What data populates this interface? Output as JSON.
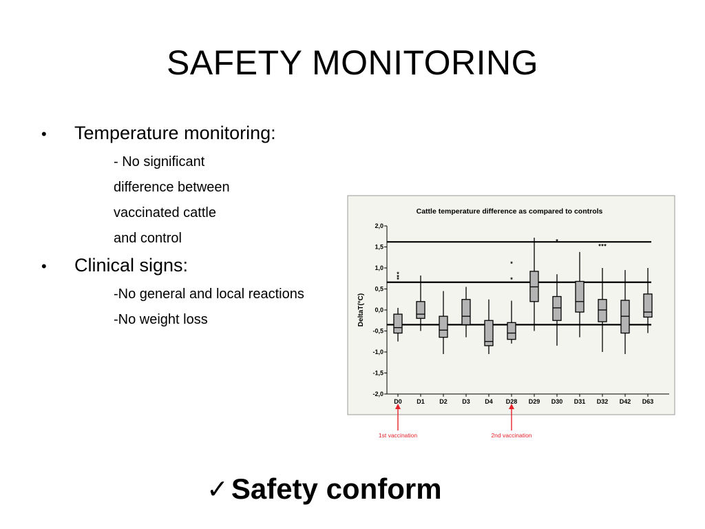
{
  "slide": {
    "title": "SAFETY MONITORING",
    "bullets": [
      {
        "label": "Temperature monitoring:",
        "subs": [
          "- No significant",
          "difference between",
          "vaccinated cattle",
          "and control"
        ]
      },
      {
        "label": "Clinical signs:",
        "subs": [
          "-No general and local reactions",
          "-No weight loss"
        ]
      }
    ],
    "bullet_glyph": "•",
    "check_glyph": "✓",
    "verdict": "Safety conform"
  },
  "chart_data": {
    "type": "box",
    "title": "Cattle temperature difference as compared to controls",
    "ylabel": "DeltaT(°C)",
    "ylim": [
      -2.0,
      2.0
    ],
    "yticks": [
      "2,0",
      "1,5",
      "1,0",
      "0,5",
      "0,0",
      "-0,5",
      "-1,0",
      "-1,5",
      "-2,0"
    ],
    "ytick_values": [
      2.0,
      1.5,
      1.0,
      0.5,
      0.0,
      -0.5,
      -1.0,
      -1.5,
      -2.0
    ],
    "reference_lines": [
      1.62,
      0.66,
      -0.35
    ],
    "categories": [
      "D0",
      "D1",
      "D2",
      "D3",
      "D4",
      "D28",
      "D29",
      "D30",
      "D31",
      "D32",
      "D42",
      "D63"
    ],
    "boxes": [
      {
        "min": -0.75,
        "q1": -0.55,
        "median": -0.42,
        "q3": -0.1,
        "max": 0.05
      },
      {
        "min": -0.5,
        "q1": -0.2,
        "median": -0.1,
        "q3": 0.2,
        "max": 0.82
      },
      {
        "min": -1.05,
        "q1": -0.65,
        "median": -0.48,
        "q3": -0.15,
        "max": 0.45
      },
      {
        "min": -0.65,
        "q1": -0.35,
        "median": -0.15,
        "q3": 0.25,
        "max": 0.55
      },
      {
        "min": -1.05,
        "q1": -0.85,
        "median": -0.75,
        "q3": -0.25,
        "max": 0.25
      },
      {
        "min": -0.8,
        "q1": -0.7,
        "median": -0.55,
        "q3": -0.3,
        "max": 0.22
      },
      {
        "min": -0.5,
        "q1": 0.2,
        "median": 0.55,
        "q3": 0.92,
        "max": 1.72
      },
      {
        "min": -0.85,
        "q1": -0.25,
        "median": 0.05,
        "q3": 0.32,
        "max": 0.85
      },
      {
        "min": -0.65,
        "q1": -0.05,
        "median": 0.2,
        "q3": 0.68,
        "max": 1.38
      },
      {
        "min": -1.0,
        "q1": -0.28,
        "median": 0.0,
        "q3": 0.25,
        "max": 1.0
      },
      {
        "min": -1.05,
        "q1": -0.55,
        "median": -0.15,
        "q3": 0.23,
        "max": 0.95
      },
      {
        "min": -0.55,
        "q1": -0.17,
        "median": -0.05,
        "q3": 0.38,
        "max": 1.0
      }
    ],
    "outliers": [
      {
        "category": "D0",
        "values": [
          0.85,
          0.78,
          0.72
        ]
      },
      {
        "category": "D28",
        "values": [
          1.1,
          0.72
        ]
      },
      {
        "category": "D30",
        "values": [
          1.63
        ]
      },
      {
        "category": "D32",
        "values": [
          1.52,
          1.52,
          1.52
        ]
      }
    ],
    "annotations": [
      {
        "category": "D0",
        "text": "1st vaccination"
      },
      {
        "category": "D28",
        "text": "2nd vaccination"
      }
    ],
    "annotation_color": "#e8202a"
  }
}
